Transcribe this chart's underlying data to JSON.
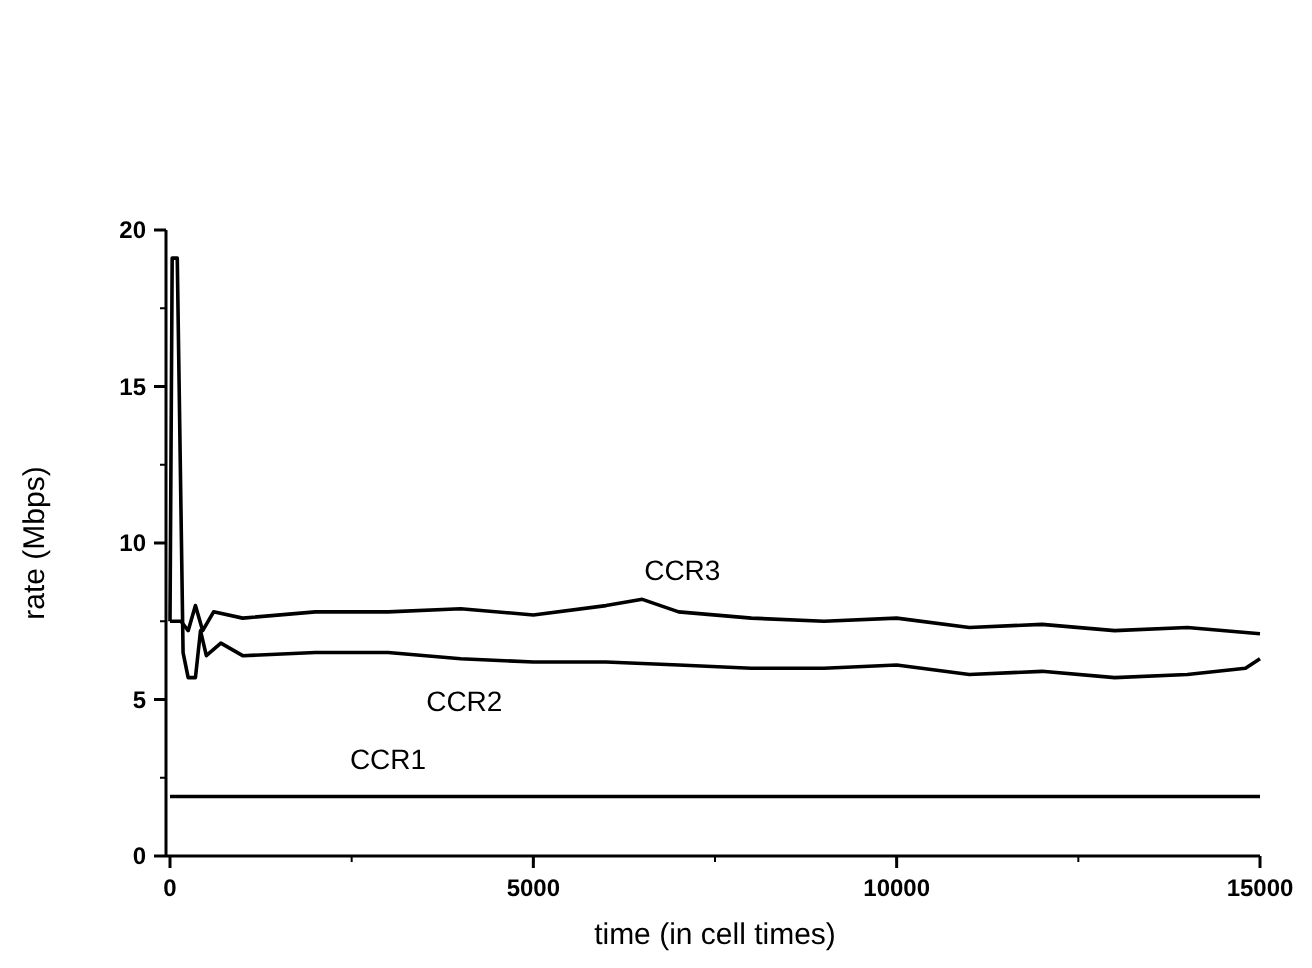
{
  "chart_data": {
    "type": "line",
    "xlabel": "time (in cell times)",
    "ylabel": "rate (Mbps)",
    "xlim": [
      0,
      15000
    ],
    "ylim": [
      0,
      20
    ],
    "xticks": [
      0,
      5000,
      10000,
      15000
    ],
    "yticks": [
      0,
      5,
      10,
      15,
      20
    ],
    "grid": false,
    "line_style": "solid",
    "marker": "none",
    "series": [
      {
        "name": "CCR1",
        "color": "#000000",
        "x": [
          0,
          1000,
          3000,
          5000,
          7000,
          9000,
          11000,
          13000,
          15000
        ],
        "values": [
          1.9,
          1.9,
          1.9,
          1.9,
          1.9,
          1.9,
          1.9,
          1.9,
          1.9
        ]
      },
      {
        "name": "CCR2",
        "color": "#000000",
        "x": [
          0,
          30,
          100,
          180,
          250,
          350,
          420,
          500,
          700,
          1000,
          2000,
          3000,
          4000,
          5000,
          6000,
          7000,
          8000,
          9000,
          10000,
          11000,
          12000,
          13000,
          14000,
          14800,
          15000
        ],
        "values": [
          7.5,
          19.1,
          19.1,
          6.5,
          5.7,
          5.7,
          7.2,
          6.4,
          6.8,
          6.4,
          6.5,
          6.5,
          6.3,
          6.2,
          6.2,
          6.1,
          6.0,
          6.0,
          6.1,
          5.8,
          5.9,
          5.7,
          5.8,
          6.0,
          6.3
        ]
      },
      {
        "name": "CCR3",
        "color": "#000000",
        "x": [
          0,
          150,
          250,
          350,
          450,
          600,
          1000,
          2000,
          3000,
          4000,
          5000,
          6000,
          6500,
          7000,
          8000,
          9000,
          10000,
          11000,
          12000,
          13000,
          14000,
          15000
        ],
        "values": [
          7.5,
          7.5,
          7.2,
          8.0,
          7.2,
          7.8,
          7.6,
          7.8,
          7.8,
          7.9,
          7.7,
          8.0,
          8.2,
          7.8,
          7.6,
          7.5,
          7.6,
          7.3,
          7.4,
          7.2,
          7.3,
          7.1
        ]
      }
    ]
  }
}
